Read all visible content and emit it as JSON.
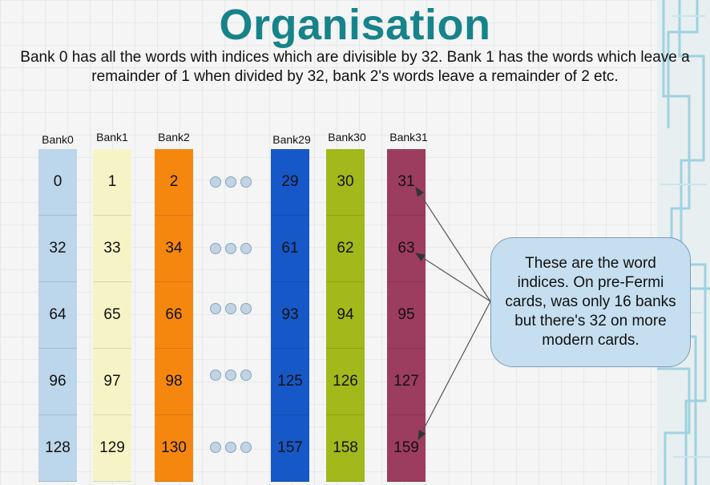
{
  "slide": {
    "title": "Organisation",
    "description": "Bank 0 has all the words with indices which are divisible by 32. Bank 1 has the words which leave a remainder of 1 when divided by 32, bank 2's words leave a remainder of 2 etc."
  },
  "banks": [
    {
      "label": "Bank0",
      "color": "#bcd6eb",
      "values": [
        "0",
        "32",
        "64",
        "96",
        "128"
      ]
    },
    {
      "label": "Bank1",
      "color": "#f6f4c6",
      "values": [
        "1",
        "33",
        "65",
        "97",
        "129"
      ]
    },
    {
      "label": "Bank2",
      "color": "#f5870f",
      "values": [
        "2",
        "34",
        "66",
        "98",
        "130"
      ]
    },
    {
      "label": "Bank29",
      "color": "#1658c8",
      "values": [
        "29",
        "61",
        "93",
        "125",
        "157"
      ]
    },
    {
      "label": "Bank30",
      "color": "#a3b81a",
      "values": [
        "30",
        "62",
        "94",
        "126",
        "158"
      ]
    },
    {
      "label": "Bank31",
      "color": "#9c3c5e",
      "values": [
        "31",
        "63",
        "95",
        "127",
        "159"
      ]
    }
  ],
  "callout": {
    "text": "These are the word indices. On pre-Fermi cards, was only 16 banks but there's 32 on more modern cards."
  },
  "colors": {
    "title": "#17838a",
    "callout_fill": "#c6dff0",
    "ellipsis_dot": "#c2d4e4"
  }
}
